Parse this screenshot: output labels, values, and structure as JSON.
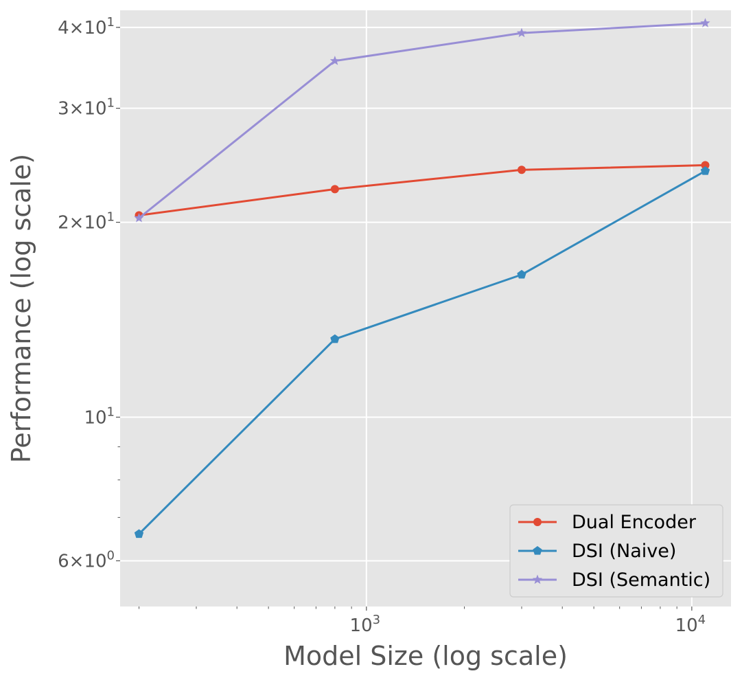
{
  "chart_data": {
    "type": "line",
    "xlabel": "Model Size (log scale)",
    "ylabel": "Performance (log scale)",
    "x_scale": "log",
    "y_scale": "log",
    "xlim": [
      175,
      13200
    ],
    "ylim": [
      5.1,
      42.5
    ],
    "grid": true,
    "legend_position": "lower-right",
    "x_ticks": [
      {
        "value": 1000,
        "base": "10",
        "exp": "3"
      },
      {
        "value": 10000,
        "base": "10",
        "exp": "4"
      }
    ],
    "y_ticks": [
      {
        "value": 6,
        "mant": "6",
        "base": "10",
        "exp": "0"
      },
      {
        "value": 10,
        "mant": "",
        "base": "10",
        "exp": "1"
      },
      {
        "value": 20,
        "mant": "2",
        "base": "10",
        "exp": "1"
      },
      {
        "value": 30,
        "mant": "3",
        "base": "10",
        "exp": "1"
      },
      {
        "value": 40,
        "mant": "4",
        "base": "10",
        "exp": "1"
      }
    ],
    "x": [
      200,
      800,
      3000,
      11000
    ],
    "series": [
      {
        "name": "Dual Encoder",
        "color": "#E24A33",
        "marker": "circle",
        "values": [
          20.5,
          22.5,
          24.1,
          24.5
        ]
      },
      {
        "name": "DSI (Naive)",
        "color": "#348ABD",
        "marker": "pentagon",
        "values": [
          6.6,
          13.2,
          16.6,
          24.0
        ]
      },
      {
        "name": "DSI (Semantic)",
        "color": "#988ED5",
        "marker": "star",
        "values": [
          20.3,
          35.5,
          39.2,
          40.6
        ]
      }
    ]
  }
}
